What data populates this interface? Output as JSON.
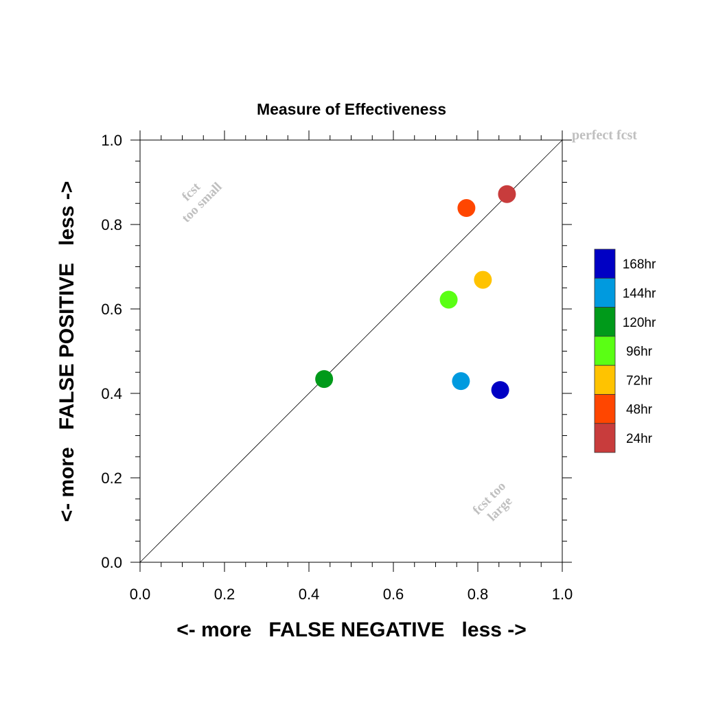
{
  "chart_data": {
    "type": "scatter",
    "title": "Measure of Effectiveness",
    "xlabel": "<- more   FALSE NEGATIVE   less ->",
    "ylabel": "<- more   FALSE POSITIVE   less ->",
    "xlim": [
      0.0,
      1.0
    ],
    "ylim": [
      0.0,
      1.0
    ],
    "xticks": [
      "0.0",
      "0.2",
      "0.4",
      "0.6",
      "0.8",
      "1.0"
    ],
    "yticks": [
      "0.0",
      "0.2",
      "0.4",
      "0.6",
      "0.8",
      "1.0"
    ],
    "grid": false,
    "reference_line": {
      "from": [
        0,
        0
      ],
      "to": [
        1,
        1
      ]
    },
    "annotations": {
      "top_right": "perfect fcst",
      "upper_left_line1": "fcst",
      "upper_left_line2": "too small",
      "lower_right_line1": "fcst too",
      "lower_right_line2": "large"
    },
    "legend_position": "right",
    "points": [
      {
        "label": "168hr",
        "x": 0.853,
        "y": 0.408,
        "color": "#0000C4"
      },
      {
        "label": "144hr",
        "x": 0.76,
        "y": 0.429,
        "color": "#009ADF"
      },
      {
        "label": "120hr",
        "x": 0.436,
        "y": 0.434,
        "color": "#009A1A"
      },
      {
        "label": "96hr",
        "x": 0.731,
        "y": 0.622,
        "color": "#5AFF14"
      },
      {
        "label": "72hr",
        "x": 0.812,
        "y": 0.669,
        "color": "#FFC300"
      },
      {
        "label": "48hr",
        "x": 0.773,
        "y": 0.839,
        "color": "#FF4600"
      },
      {
        "label": "24hr",
        "x": 0.869,
        "y": 0.872,
        "color": "#C83C3C"
      }
    ]
  }
}
